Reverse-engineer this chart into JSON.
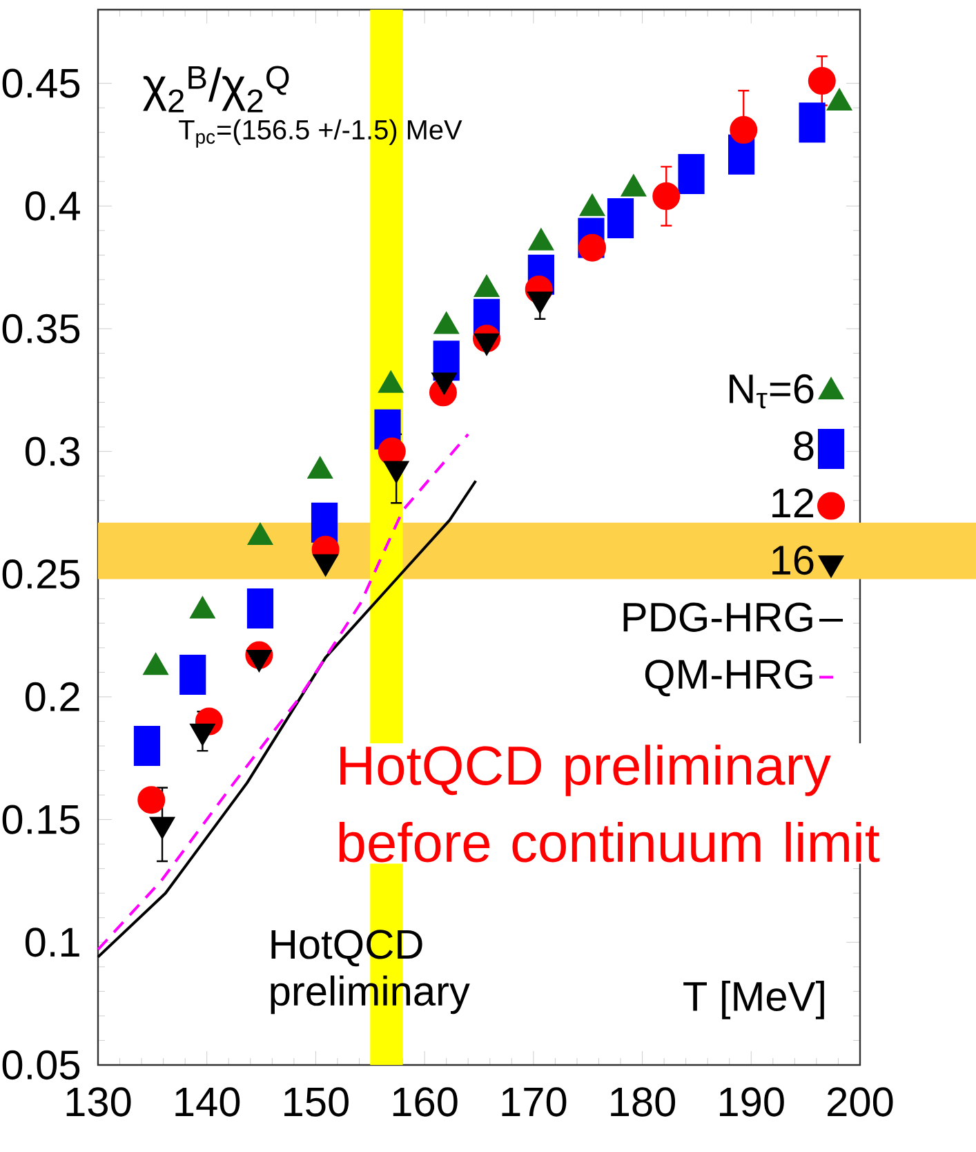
{
  "chart_data": {
    "type": "scatter",
    "ylabel": "χ$_{2}$$^{B}$/χ$_{2}$$^{Q}$",
    "xlabel": "T [MeV]",
    "annotations": [
      "HotQCD preliminary",
      "HotQCD preliminary before continuum limit"
    ],
    "xlim": [
      130,
      200
    ],
    "xticks": [
      130,
      140,
      150,
      160,
      170,
      180,
      190,
      200
    ],
    "ylim": [
      0.05,
      0.48
    ],
    "yticks": [
      0.05,
      0.1,
      0.15,
      0.2,
      0.25,
      0.3,
      0.35,
      0.4,
      0.45
    ],
    "legend": "right",
    "bands": [
      {
        "axis": "y",
        "from": 0.248,
        "to": 0.271,
        "color": "#fdd24a"
      },
      {
        "axis": "x",
        "from": 155,
        "to": 158,
        "color": "#ffff00",
        "label": "T$_{pc}$=(156.5 +/-1.5) MeV"
      }
    ],
    "series": [
      {
        "name": "N$_{τ}$=6",
        "marker": "triangle",
        "color": "#1a7a1a",
        "x": [
          135.3,
          139.6,
          144.9,
          150.4,
          156.9,
          162.0,
          165.7,
          170.7,
          175.4,
          179.2,
          198.1
        ],
        "values": [
          0.212,
          0.235,
          0.265,
          0.292,
          0.327,
          0.351,
          0.366,
          0.385,
          0.399,
          0.407,
          0.442
        ]
      },
      {
        "name": "8",
        "marker": "square",
        "color": "#0000ff",
        "x": [
          134.5,
          138.7,
          144.9,
          150.8,
          156.6,
          162.0,
          165.7,
          170.7,
          175.3,
          178.0,
          184.5,
          189.1,
          195.6
        ],
        "values": [
          0.18,
          0.209,
          0.236,
          0.271,
          0.309,
          0.337,
          0.354,
          0.372,
          0.387,
          0.395,
          0.413,
          0.421,
          0.434
        ]
      },
      {
        "name": "12",
        "marker": "circle",
        "color": "#ff0000",
        "x": [
          134.9,
          140.2,
          144.8,
          150.9,
          157.0,
          161.7,
          165.7,
          170.5,
          175.4,
          182.2,
          189.3,
          196.5
        ],
        "values": [
          0.158,
          0.19,
          0.217,
          0.26,
          0.3,
          0.324,
          0.346,
          0.366,
          0.383,
          0.404,
          0.431,
          0.451
        ],
        "errors": [
          null,
          null,
          null,
          null,
          null,
          null,
          null,
          null,
          null,
          0.012,
          0.016,
          0.01
        ]
      },
      {
        "name": "16",
        "marker": "triangle down",
        "color": "#000000",
        "x": [
          135.9,
          139.6,
          144.8,
          150.9,
          157.4,
          161.8,
          165.7,
          170.6
        ],
        "values": [
          0.148,
          0.186,
          0.216,
          0.255,
          0.293,
          0.329,
          0.345,
          0.362
        ],
        "errors": [
          0.015,
          0.008,
          null,
          null,
          0.014,
          null,
          null,
          0.008
        ]
      },
      {
        "name": "PDG-HRG",
        "type": "line",
        "marker": "none",
        "line_style": "solid",
        "color": "#000000",
        "x": [
          130,
          136.2,
          143.7,
          150.9,
          157.0,
          162.3,
          164.7
        ],
        "values": [
          0.094,
          0.12,
          0.165,
          0.216,
          0.246,
          0.272,
          0.288
        ]
      },
      {
        "name": "QM-HRG",
        "type": "line",
        "marker": "none",
        "line_style": "dashed",
        "color": "#ff00ff",
        "x": [
          130,
          135.8,
          142.5,
          148.4,
          154.1,
          158.0,
          164.0
        ],
        "values": [
          0.097,
          0.125,
          0.165,
          0.199,
          0.238,
          0.276,
          0.307
        ]
      }
    ]
  }
}
